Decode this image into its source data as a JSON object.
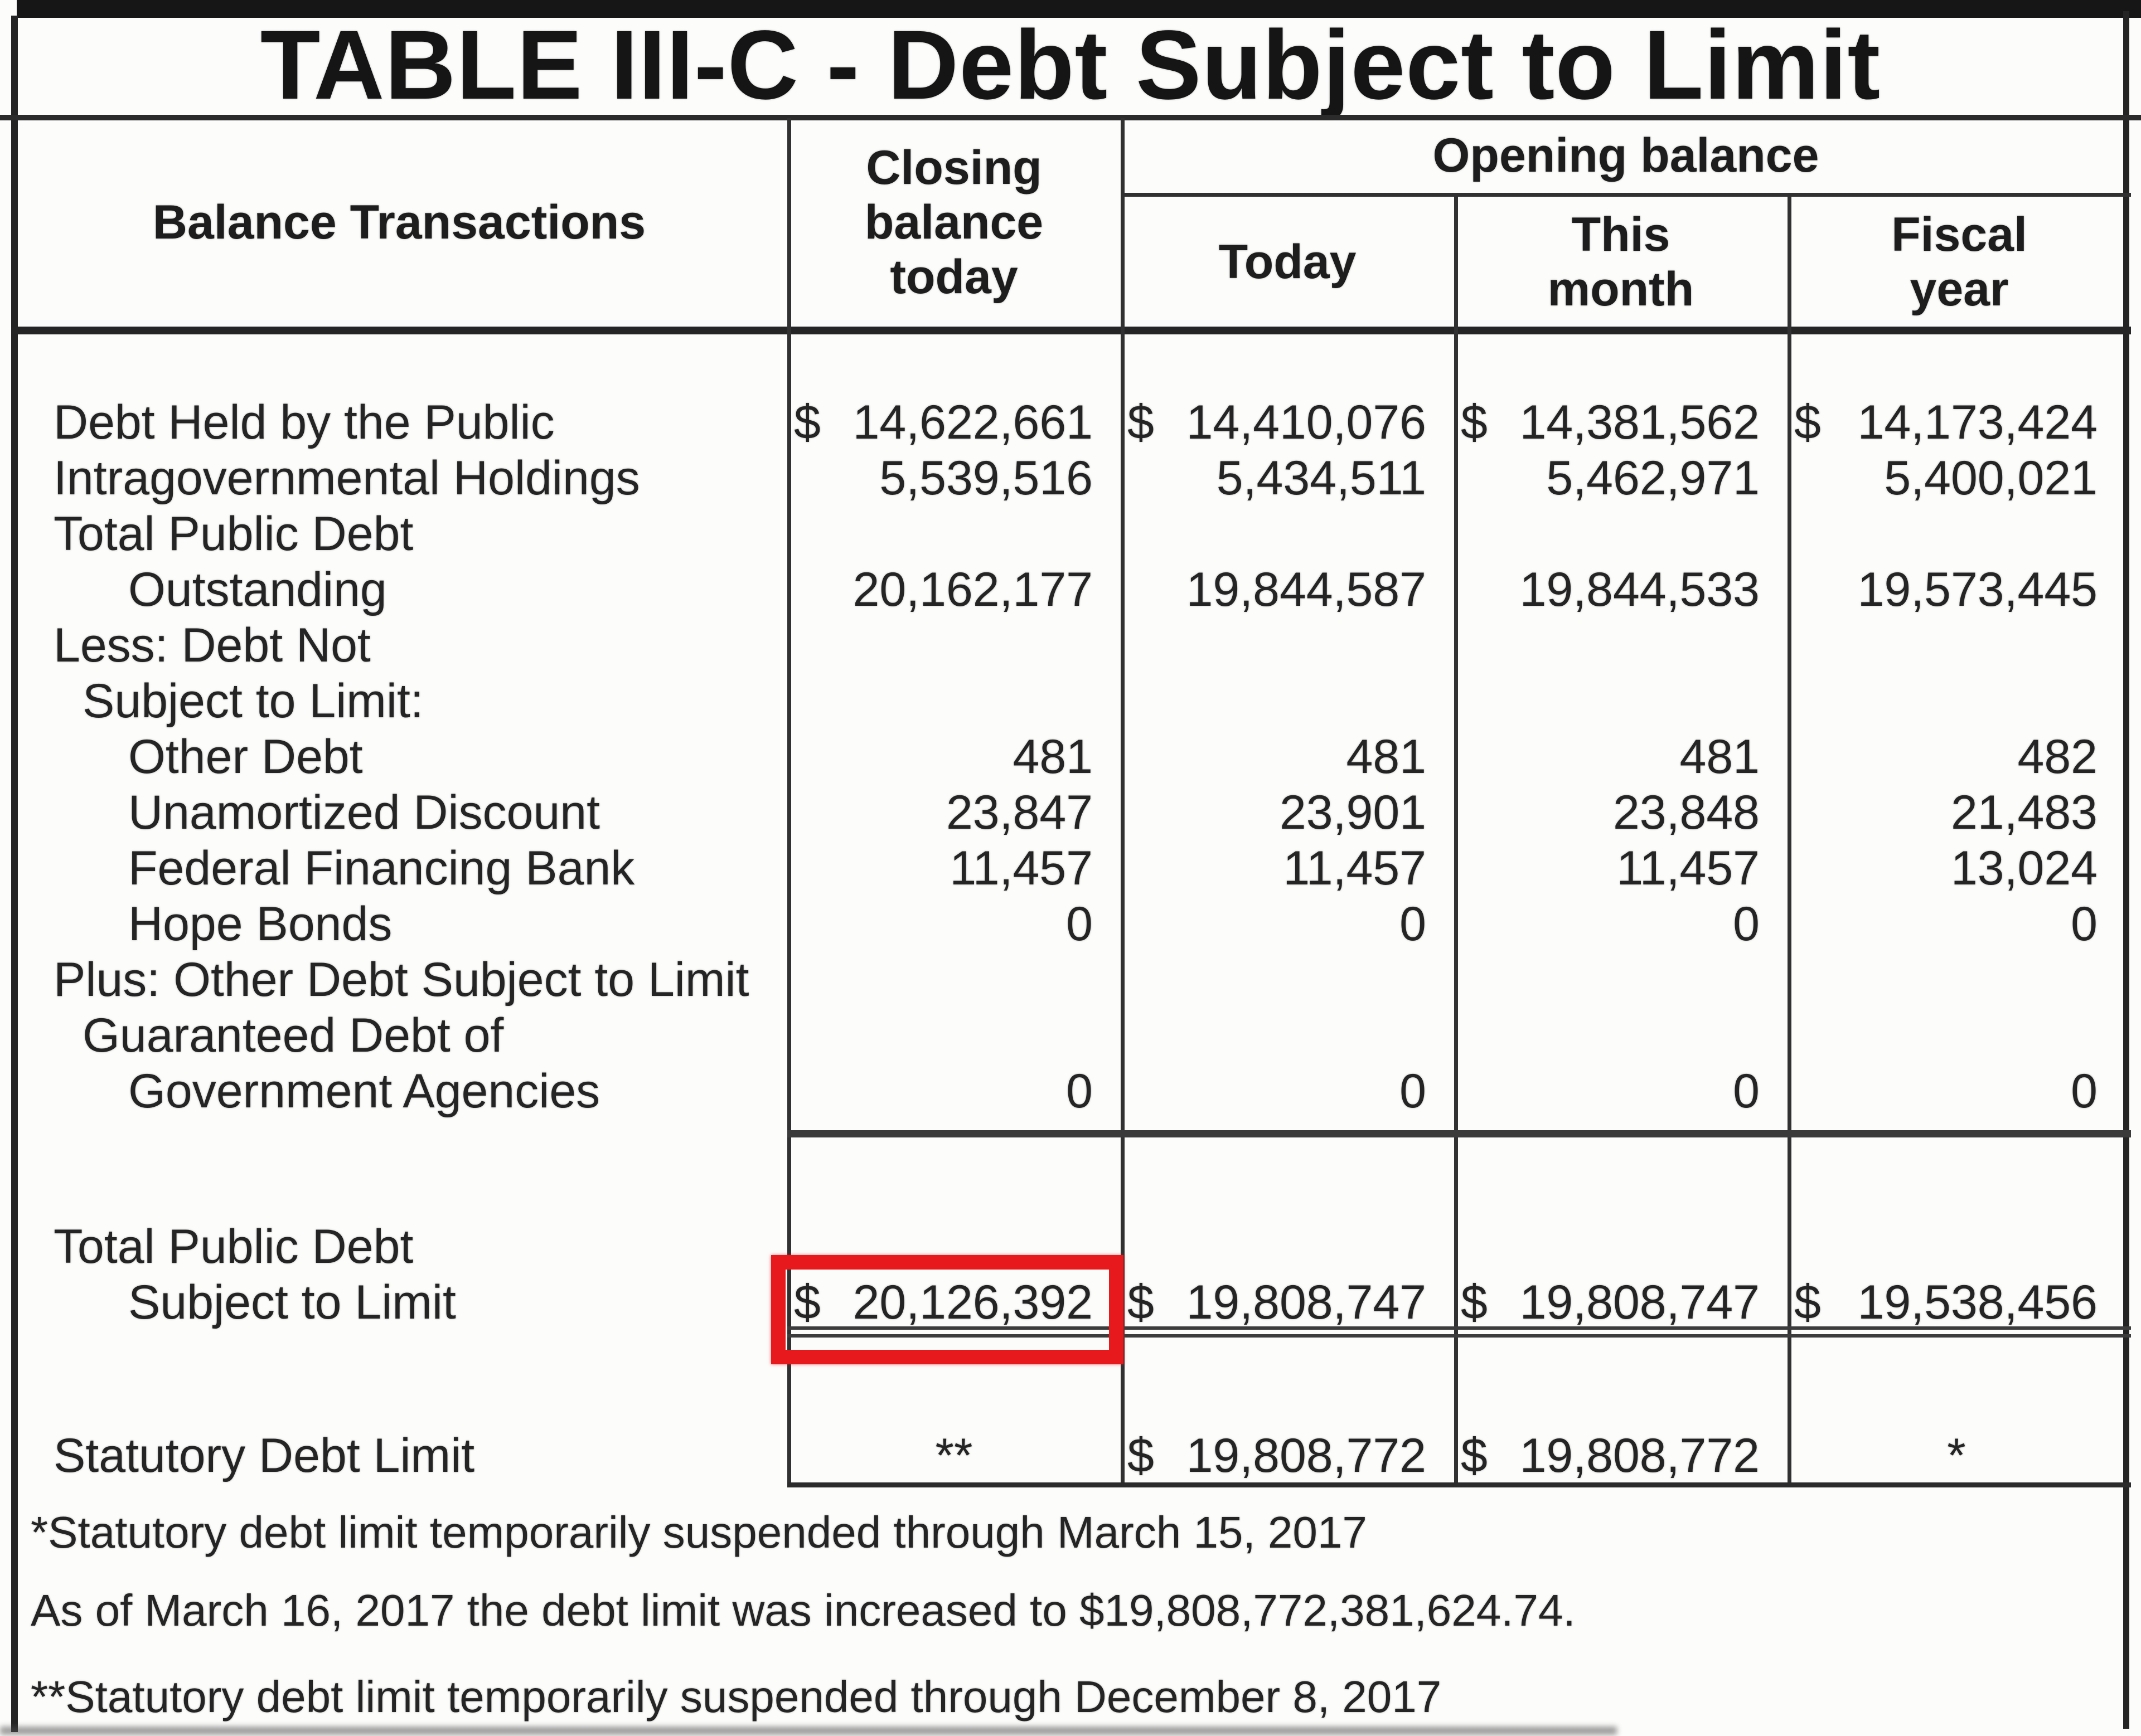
{
  "title": "TABLE III-C - Debt Subject to Limit",
  "colors": {
    "highlight_red": "#e8191d",
    "line": "#2b2b2b",
    "text": "#202020",
    "scan_bar": "#161616"
  },
  "header": {
    "row_axis": "Balance Transactions",
    "closing_col_lines": [
      "Closing",
      "balance",
      "today"
    ],
    "opening_group": "Opening balance",
    "sub_columns": [
      [
        "Today"
      ],
      [
        "This",
        "month"
      ],
      [
        "Fiscal",
        "year"
      ]
    ]
  },
  "rows": [
    {
      "label": "Debt Held by the Public",
      "indent": 0,
      "cells": [
        {
          "d": "$",
          "v": "14,622,661"
        },
        {
          "d": "$",
          "v": "14,410,076"
        },
        {
          "d": "$",
          "v": "14,381,562"
        },
        {
          "d": "$",
          "v": "14,173,424"
        }
      ]
    },
    {
      "label": "Intragovernmental Holdings",
      "indent": 0,
      "cells": [
        {
          "d": "",
          "v": "5,539,516"
        },
        {
          "d": "",
          "v": "5,434,511"
        },
        {
          "d": "",
          "v": "5,462,971"
        },
        {
          "d": "",
          "v": "5,400,021"
        }
      ]
    },
    {
      "label": "Total Public Debt",
      "indent": 0,
      "cells": [
        null,
        null,
        null,
        null
      ]
    },
    {
      "label": "Outstanding",
      "indent": 2,
      "cells": [
        {
          "d": "",
          "v": "20,162,177"
        },
        {
          "d": "",
          "v": "19,844,587"
        },
        {
          "d": "",
          "v": "19,844,533"
        },
        {
          "d": "",
          "v": "19,573,445"
        }
      ]
    },
    {
      "label": "Less: Debt Not",
      "indent": 0,
      "cells": [
        null,
        null,
        null,
        null
      ]
    },
    {
      "label": "Subject to Limit:",
      "indent": 1,
      "cells": [
        null,
        null,
        null,
        null
      ]
    },
    {
      "label": "Other Debt",
      "indent": 2,
      "cells": [
        {
          "d": "",
          "v": "481"
        },
        {
          "d": "",
          "v": "481"
        },
        {
          "d": "",
          "v": "481"
        },
        {
          "d": "",
          "v": "482"
        }
      ]
    },
    {
      "label": "Unamortized Discount",
      "indent": 2,
      "cells": [
        {
          "d": "",
          "v": "23,847"
        },
        {
          "d": "",
          "v": "23,901"
        },
        {
          "d": "",
          "v": "23,848"
        },
        {
          "d": "",
          "v": "21,483"
        }
      ]
    },
    {
      "label": "Federal Financing Bank",
      "indent": 2,
      "cells": [
        {
          "d": "",
          "v": "11,457"
        },
        {
          "d": "",
          "v": "11,457"
        },
        {
          "d": "",
          "v": "11,457"
        },
        {
          "d": "",
          "v": "13,024"
        }
      ]
    },
    {
      "label": "Hope Bonds",
      "indent": 2,
      "cells": [
        {
          "d": "",
          "v": "0"
        },
        {
          "d": "",
          "v": "0"
        },
        {
          "d": "",
          "v": "0"
        },
        {
          "d": "",
          "v": "0"
        }
      ]
    },
    {
      "label": "Plus: Other Debt Subject to Limit",
      "indent": 0,
      "cells": [
        null,
        null,
        null,
        null
      ]
    },
    {
      "label": "Guaranteed Debt of",
      "indent": 1,
      "cells": [
        null,
        null,
        null,
        null
      ]
    },
    {
      "label": "Government Agencies",
      "indent": 2,
      "cells": [
        {
          "d": "",
          "v": "0"
        },
        {
          "d": "",
          "v": "0"
        },
        {
          "d": "",
          "v": "0"
        },
        {
          "d": "",
          "v": "0"
        }
      ]
    }
  ],
  "totals": {
    "label_line1": "Total Public Debt",
    "label_line2": "Subject to Limit",
    "cells": [
      {
        "d": "$",
        "v": "20,126,392"
      },
      {
        "d": "$",
        "v": "19,808,747"
      },
      {
        "d": "$",
        "v": "19,808,747"
      },
      {
        "d": "$",
        "v": "19,538,456"
      }
    ],
    "highlighted_cell": "closing_balance_today"
  },
  "statutory": {
    "label": "Statutory Debt Limit",
    "closing_note": "**",
    "today": {
      "d": "$",
      "v": "19,808,772"
    },
    "this_month": {
      "d": "$",
      "v": "19,808,772"
    },
    "fiscal_note": "*"
  },
  "footnotes": [
    "*Statutory debt limit temporarily suspended through March 15, 2017",
    "As of March 16, 2017 the debt limit was increased to $19,808,772,381,624.74.",
    "**Statutory debt limit temporarily suspended through December 8, 2017"
  ]
}
